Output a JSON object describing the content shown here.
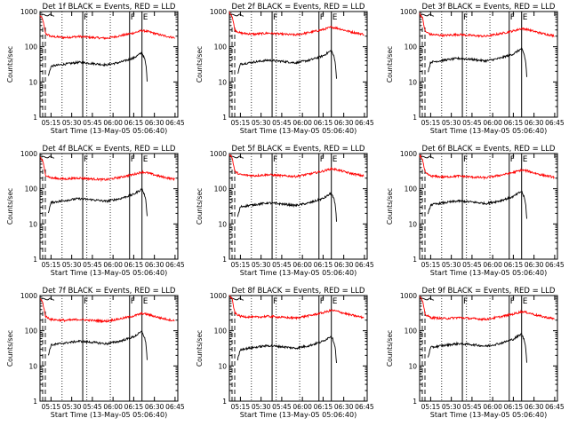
{
  "figure": {
    "panels": [
      "1f",
      "2f",
      "3f",
      "4f",
      "5f",
      "6f",
      "7f",
      "8f",
      "9f"
    ],
    "title_template": "Det {id} BLACK = Events, RED = LLD",
    "xlabel": "Start Time (13-May-05 05:06:40)",
    "ylabel": "Counts/sec",
    "colors": {
      "events": "#000000",
      "lld": "#ff0000",
      "axes": "#000000",
      "background": "#ffffff"
    }
  },
  "chart_data": {
    "type": "line",
    "panel_count": 9,
    "layout": "3x3",
    "yscale": "log",
    "ylim": [
      1,
      1000
    ],
    "yticks": [
      "1",
      "10",
      "100",
      "1000"
    ],
    "xlim": [
      "05:07",
      "06:47"
    ],
    "xticks": [
      "05:15",
      "05:30",
      "05:45",
      "06:00",
      "06:15",
      "06:30",
      "06:45"
    ],
    "xlabel": "Start Time (13-May-05 05:06:40)",
    "ylabel": "Counts/sec",
    "series": [
      {
        "name": "BLACK = Events",
        "color": "#000000"
      },
      {
        "name": "RED = LLD",
        "color": "#ff0000"
      }
    ],
    "markers": [
      {
        "label": "F",
        "time": "05:38",
        "style": "solid"
      },
      {
        "label": "F",
        "time": "06:12",
        "style": "solid"
      },
      {
        "label": "E",
        "time": "06:21",
        "style": "solid"
      },
      {
        "label": "",
        "time": "05:23",
        "style": "dotted"
      },
      {
        "label": "",
        "time": "05:41",
        "style": "dotted"
      },
      {
        "label": "",
        "time": "05:58",
        "style": "dotted"
      }
    ],
    "red_curve": [
      [
        "05:07",
        900
      ],
      [
        "05:09",
        700
      ],
      [
        "05:11",
        280
      ],
      [
        "05:15",
        230
      ],
      [
        "05:25",
        215
      ],
      [
        "05:35",
        230
      ],
      [
        "05:45",
        215
      ],
      [
        "05:55",
        205
      ],
      [
        "06:05",
        240
      ],
      [
        "06:15",
        290
      ],
      [
        "06:21",
        340
      ],
      [
        "06:25",
        320
      ],
      [
        "06:35",
        250
      ],
      [
        "06:45",
        210
      ]
    ],
    "black_curve": [
      [
        "05:13",
        18
      ],
      [
        "05:15",
        35
      ],
      [
        "05:25",
        40
      ],
      [
        "05:35",
        45
      ],
      [
        "05:45",
        42
      ],
      [
        "05:55",
        38
      ],
      [
        "06:05",
        45
      ],
      [
        "06:15",
        60
      ],
      [
        "06:21",
        85
      ],
      [
        "06:23",
        55
      ],
      [
        "06:24",
        35
      ],
      [
        "06:25",
        10
      ]
    ]
  }
}
